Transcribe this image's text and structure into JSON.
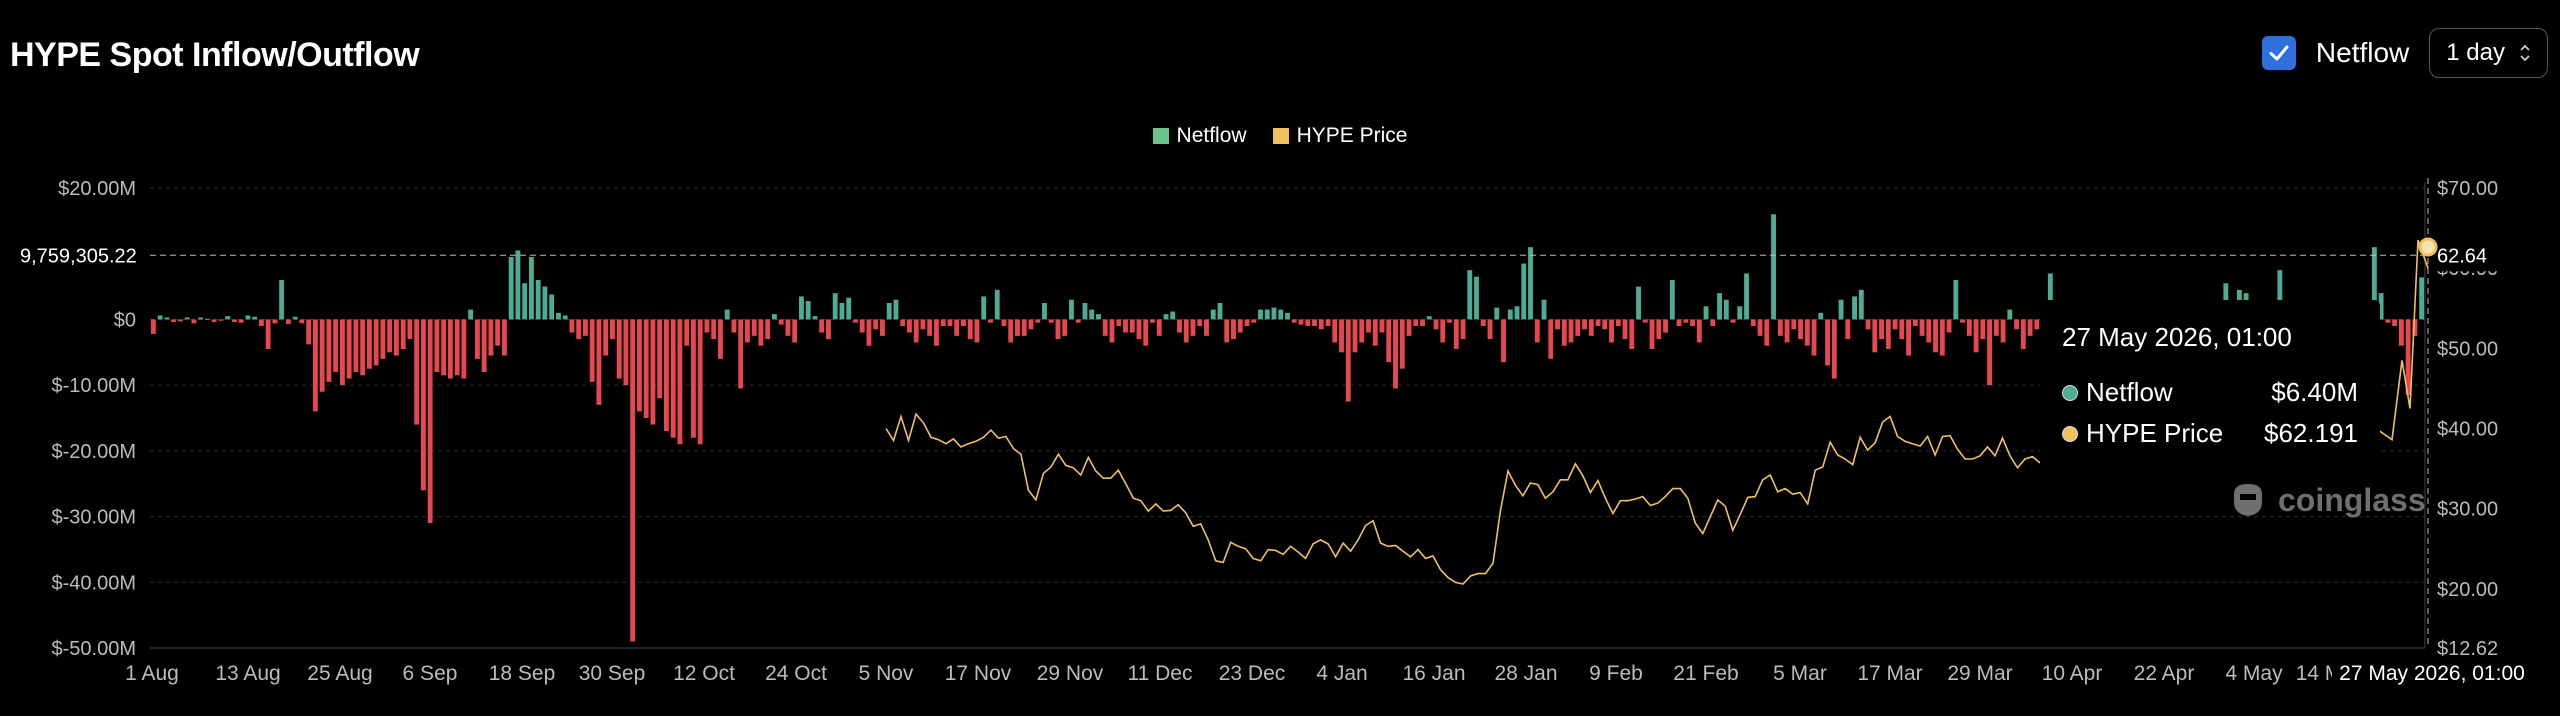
{
  "header": {
    "title": "HYPE Spot Inflow/Outflow",
    "netflow_toggle_label": "Netflow",
    "netflow_checked": true,
    "interval_value": "1 day"
  },
  "colors": {
    "positive": "#4dab96",
    "negative": "#e5484d",
    "price": "#f0c05c",
    "background": "#000000",
    "accent": "#2f6fde"
  },
  "tooltip": {
    "time": "27 May 2026, 01:00",
    "rows": [
      {
        "label": "Netflow",
        "value": "$6.40M"
      },
      {
        "label": "HYPE Price",
        "value": "$62.191"
      }
    ]
  },
  "crosshair": {
    "left_value": "9,759,305.22",
    "right_value": "62.64",
    "x_label": "27 May 2026, 01:00"
  },
  "watermark": "coinglass",
  "chart_data": {
    "type": "bar",
    "legend": [
      "Netflow",
      "HYPE Price"
    ],
    "legend_position": "top-center",
    "grid": true,
    "left_axis": {
      "ticks": [
        "$20.00M",
        "$0",
        "$-10.00M",
        "$-20.00M",
        "$-30.00M",
        "$-40.00M",
        "$-50.00M"
      ],
      "tick_values": [
        20,
        0,
        -10,
        -20,
        -30,
        -40,
        -50
      ],
      "range": [
        -50,
        20
      ],
      "unit": "millions USD"
    },
    "right_axis": {
      "ticks": [
        "$70.00",
        "$60.00",
        "$50.00",
        "$40.00",
        "$30.00",
        "$20.00",
        "$12.62"
      ],
      "tick_values": [
        70,
        60,
        50,
        40,
        30,
        20,
        12.62
      ],
      "range": [
        12.62,
        70
      ]
    },
    "x_ticks": [
      "1 Aug",
      "13 Aug",
      "25 Aug",
      "6 Sep",
      "18 Sep",
      "30 Sep",
      "12 Oct",
      "24 Oct",
      "5 Nov",
      "17 Nov",
      "29 Nov",
      "11 Dec",
      "23 Dec",
      "4 Jan",
      "16 Jan",
      "28 Jan",
      "9 Feb",
      "21 Feb",
      "5 Mar",
      "17 Mar",
      "29 Mar",
      "10 Apr",
      "22 Apr",
      "4 May",
      "14 May"
    ],
    "series": [
      {
        "name": "Netflow",
        "values": [
          -2.2,
          0.6,
          0.3,
          -0.4,
          -0.3,
          0.3,
          -0.6,
          0.3,
          0.1,
          -0.4,
          -0.2,
          0.5,
          -0.4,
          -0.5,
          0.6,
          0.4,
          -1.0,
          -4.5,
          -0.6,
          6.0,
          -0.7,
          0.4,
          -0.6,
          -3.8,
          -14.0,
          -11.0,
          -9.5,
          -8.0,
          -10.0,
          -9.0,
          -8.0,
          -8.5,
          -7.5,
          -7.0,
          -6.0,
          -5.0,
          -5.5,
          -4.5,
          -3.0,
          -16.0,
          -26.0,
          -31.0,
          -8.0,
          -8.5,
          -9.0,
          -8.5,
          -9.0,
          1.5,
          -6.0,
          -8.0,
          -5.5,
          -4.0,
          -5.5,
          9.5,
          10.5,
          5.5,
          9.5,
          6.0,
          5.0,
          3.8,
          1.0,
          0.6,
          -2.0,
          -3.0,
          -2.5,
          -9.5,
          -13.0,
          -5.5,
          -3.0,
          -9.0,
          -10.0,
          -49.0,
          -14.0,
          -15.0,
          -16.0,
          -12.0,
          -17.0,
          -18.0,
          -19.0,
          -4.0,
          -18.0,
          -19.0,
          -2.0,
          -3.0,
          -6.0,
          1.5,
          -2.0,
          -10.5,
          -3.5,
          -2.5,
          -4.0,
          -3.0,
          0.8,
          -0.8,
          -2.5,
          -3.5,
          3.5,
          2.8,
          0.5,
          -2.0,
          -3.0,
          4.0,
          2.5,
          3.3,
          -0.5,
          -2.0,
          -4.0,
          -1.5,
          -2.5,
          2.5,
          3.0,
          -1.0,
          -2.0,
          -3.5,
          -1.5,
          -2.5,
          -4.0,
          -1.0,
          -1.0,
          -2.5,
          -1.0,
          -3.0,
          -3.5,
          3.5,
          -0.5,
          4.5,
          -1.0,
          -3.5,
          -2.5,
          -2.5,
          -1.5,
          -0.5,
          2.5,
          -0.5,
          -3.0,
          -2.5,
          3.0,
          -0.5,
          2.5,
          1.5,
          0.8,
          -2.5,
          -3.5,
          -1.0,
          -2.0,
          -2.0,
          -3.0,
          -4.0,
          -0.5,
          -2.5,
          0.8,
          1.2,
          -2.0,
          -3.5,
          -2.5,
          -1.0,
          -2.5,
          1.5,
          2.5,
          -3.5,
          -3.0,
          -2.0,
          -1.0,
          -0.5,
          1.5,
          1.5,
          1.8,
          1.5,
          1.0,
          -0.5,
          -0.8,
          -1.0,
          -1.0,
          -1.5,
          -1.0,
          -3.5,
          -5.0,
          -12.5,
          -5.0,
          -3.5,
          -2.0,
          -4.0,
          -2.0,
          -6.5,
          -10.5,
          -7.5,
          -2.5,
          -1.0,
          -1.0,
          0.5,
          -1.5,
          -3.5,
          -0.5,
          -4.5,
          -3.0,
          7.5,
          6.5,
          -1.0,
          -3.0,
          1.8,
          -6.5,
          1.5,
          2.0,
          8.5,
          11.0,
          -3.5,
          3.0,
          -6.0,
          -1.5,
          -4.0,
          -3.5,
          -2.5,
          -1.5,
          -2.5,
          -1.0,
          -1.5,
          -3.5,
          -1.0,
          -3.0,
          -4.5,
          5.0,
          -0.5,
          -4.5,
          -3.0,
          -2.0,
          6.0,
          -1.0,
          -0.5,
          -1.0,
          -3.5,
          2.0,
          -1.0,
          4.0,
          3.0,
          -0.5,
          2.0,
          7.0,
          -1.0,
          -2.5,
          -4.0,
          16.0,
          -2.5,
          -3.5,
          -1.5,
          -3.0,
          -4.0,
          -5.5,
          1.0,
          -7.0,
          -9.0,
          3.0,
          -3.0,
          3.5,
          4.5,
          -1.5,
          -5.0,
          -3.0,
          -4.5,
          -1.5,
          -3.0,
          -5.5,
          -1.0,
          -2.5,
          -3.5,
          -5.0,
          -5.5,
          -2.0,
          6.0,
          -0.5,
          -2.5,
          -5.0,
          -3.0,
          -10.0,
          -2.5,
          -3.5,
          1.5,
          -1.5,
          -4.5,
          -2.5,
          -1.5,
          -2.5,
          7.0,
          -2.0,
          -4.5,
          1.5,
          -4.5,
          -7.0,
          1.5,
          -1.5,
          1.0,
          -1.5,
          -2.0,
          -1.5,
          1.0,
          -3.0,
          -0.5,
          -2.0,
          -1.5,
          -1.0,
          -0.5,
          -1.0,
          -2.0,
          0.8,
          -1.5,
          -2.0,
          -0.5,
          -1.0,
          5.5,
          -1.5,
          4.5,
          4.0,
          -1.0,
          -0.5,
          -0.8,
          1.2,
          7.5,
          -0.5,
          -1.5,
          -2.0,
          -1.5,
          -1.5,
          -1.0,
          -2.0,
          -0.5,
          -1.0,
          -0.5,
          -1.5,
          -3.0,
          -1.0,
          11.0,
          4.0,
          -0.5,
          -1.0,
          -4.0,
          -11.5,
          -2.5,
          6.4
        ]
      },
      {
        "name": "HYPE Price",
        "x_range": [
          "5 Nov",
          "14 Apr"
        ],
        "values": [
          40.0,
          38.5,
          41.5,
          38.5,
          41.8,
          40.7,
          38.9,
          38.6,
          38.1,
          38.7,
          37.7,
          38.1,
          38.4,
          38.9,
          39.8,
          38.8,
          39.0,
          37.5,
          36.8,
          32.3,
          31.1,
          34.4,
          35.2,
          36.8,
          35.4,
          35.1,
          34.2,
          36.4,
          34.7,
          33.8,
          33.8,
          34.8,
          33.1,
          31.3,
          31.0,
          29.7,
          30.6,
          29.7,
          29.8,
          30.5,
          29.5,
          27.8,
          28.1,
          26.1,
          23.5,
          23.3,
          25.8,
          25.3,
          25.0,
          23.8,
          23.5,
          24.9,
          24.8,
          24.3,
          25.3,
          24.6,
          23.8,
          25.6,
          26.1,
          25.6,
          24.0,
          25.7,
          24.7,
          26.1,
          27.9,
          28.5,
          25.7,
          25.3,
          25.4,
          24.7,
          24.0,
          24.9,
          23.8,
          24.1,
          22.4,
          21.4,
          20.8,
          20.6,
          21.6,
          21.9,
          21.9,
          23.2,
          29.8,
          34.7,
          32.9,
          31.6,
          33.2,
          33.0,
          31.3,
          32.1,
          33.6,
          33.6,
          35.6,
          34.1,
          32.0,
          33.5,
          31.3,
          29.4,
          31.0,
          31.0,
          31.2,
          31.5,
          30.4,
          30.7,
          31.5,
          32.5,
          32.5,
          31.3,
          28.2,
          26.9,
          29.0,
          31.1,
          30.3,
          27.3,
          29.3,
          31.4,
          31.5,
          33.6,
          34.2,
          32.1,
          32.5,
          31.8,
          32.0,
          30.6,
          34.8,
          35.2,
          38.3,
          36.7,
          36.2,
          35.5,
          38.9,
          37.3,
          38.2,
          40.8,
          41.5,
          39.0,
          38.4,
          38.1,
          37.8,
          39.0,
          36.7,
          39.0,
          39.1,
          37.4,
          36.2,
          36.2,
          36.6,
          37.7,
          36.6,
          38.8,
          36.6,
          35.1,
          36.2,
          36.5,
          35.7
        ]
      }
    ]
  }
}
